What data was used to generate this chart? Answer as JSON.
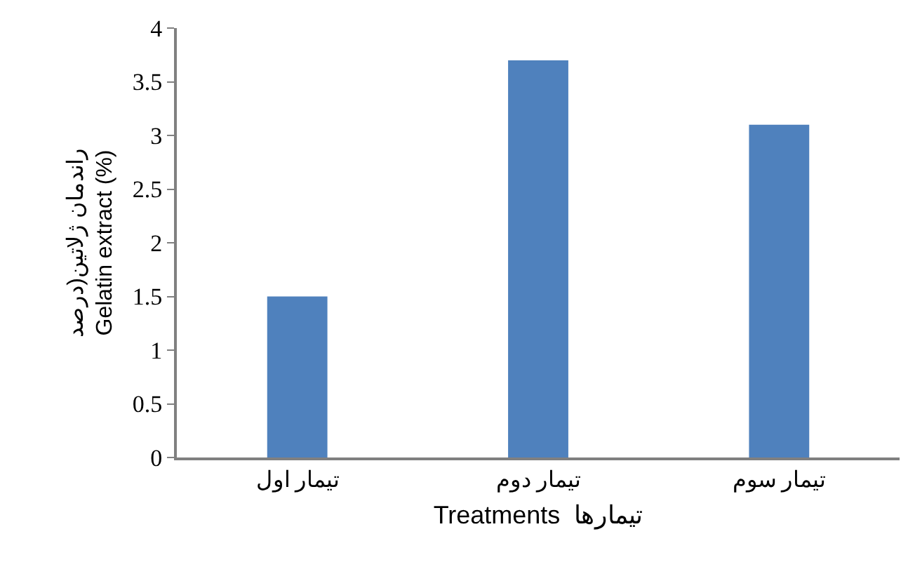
{
  "chart_data": {
    "type": "bar",
    "categories": [
      "تیمار اول",
      "تیمار دوم",
      "تیمار سوم"
    ],
    "values": [
      1.5,
      3.7,
      3.1
    ],
    "color": "#4f81bd",
    "ylabel": "راندمان ژلاتین(درصد\nGelatin extract (%)",
    "xlabel": "Treatments  تیمارها",
    "ylim": [
      0,
      4
    ],
    "yticks": [
      0,
      0.5,
      1,
      1.5,
      2,
      2.5,
      3,
      3.5,
      4
    ]
  }
}
